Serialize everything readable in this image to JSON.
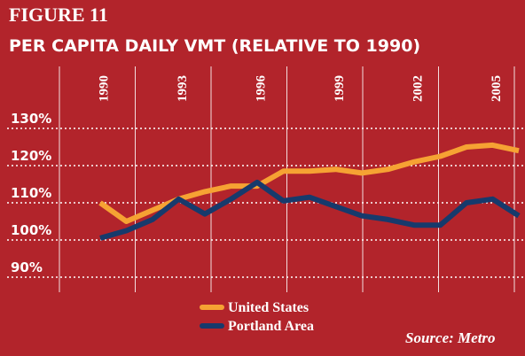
{
  "chart_data": {
    "type": "line",
    "figure_label": "FIGURE 11",
    "title": "PER CAPITA DAILY VMT (RELATIVE TO 1990)",
    "categories": [
      "1990",
      null,
      null,
      "1993",
      null,
      null,
      "1996",
      null,
      null,
      "1999",
      null,
      null,
      "2002",
      null,
      null,
      "2005",
      null
    ],
    "series": [
      {
        "name": "United States",
        "color": "#f6a233",
        "values": [
          110,
          105,
          108,
          111,
          113,
          114.5,
          114.5,
          118.5,
          118.5,
          119,
          118,
          119,
          121,
          122.5,
          125,
          125.5,
          124
        ]
      },
      {
        "name": "Portland Area",
        "color": "#173a6c",
        "values": [
          100.5,
          102.5,
          105.5,
          111,
          107,
          111,
          115.5,
          110.5,
          111.5,
          109,
          106.5,
          105.5,
          104,
          104,
          110,
          111,
          106.5
        ]
      }
    ],
    "ylim": [
      90,
      130
    ],
    "yticks": [
      {
        "value": 90,
        "label": "90%"
      },
      {
        "value": 100,
        "label": "100%"
      },
      {
        "value": 110,
        "label": "110%"
      },
      {
        "value": 120,
        "label": "120%"
      },
      {
        "value": 130,
        "label": "130%"
      }
    ],
    "grid": true,
    "source": "Source: Metro"
  }
}
